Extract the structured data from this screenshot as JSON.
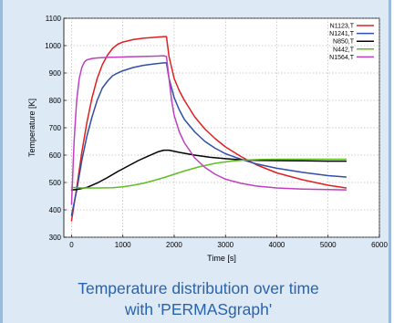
{
  "caption": {
    "line1": "Temperature distribution over time",
    "line2": "with 'PERMASgraph'"
  },
  "chart_data": {
    "type": "line",
    "title": "",
    "xlabel": "Time [s]",
    "ylabel": "Temperature [K]",
    "xlim": [
      -150,
      6000
    ],
    "ylim": [
      300,
      1100
    ],
    "xticks": [
      0,
      1000,
      2000,
      3000,
      4000,
      5000,
      6000
    ],
    "yticks": [
      300,
      400,
      500,
      600,
      700,
      800,
      900,
      1000,
      1100
    ],
    "grid": true,
    "legend_position": "top-right",
    "series": [
      {
        "name": "N1123,T",
        "color": "#e02020",
        "x": [
          0,
          100,
          200,
          300,
          400,
          500,
          600,
          700,
          800,
          900,
          1000,
          1200,
          1400,
          1600,
          1800,
          1850,
          1900,
          2000,
          2100,
          2200,
          2400,
          2600,
          2800,
          3000,
          3300,
          3600,
          4000,
          4500,
          5000,
          5350
        ],
        "y": [
          360,
          480,
          610,
          720,
          810,
          880,
          930,
          965,
          990,
          1005,
          1013,
          1022,
          1027,
          1030,
          1033,
          1033,
          960,
          880,
          835,
          800,
          740,
          695,
          660,
          630,
          595,
          565,
          535,
          510,
          490,
          480
        ]
      },
      {
        "name": "N1241,T",
        "color": "#2f4fa8",
        "x": [
          0,
          100,
          200,
          300,
          400,
          500,
          600,
          700,
          800,
          900,
          1000,
          1200,
          1400,
          1600,
          1800,
          1850,
          1900,
          2000,
          2100,
          2200,
          2400,
          2600,
          2800,
          3000,
          3300,
          3600,
          4000,
          4500,
          5000,
          5350
        ],
        "y": [
          380,
          470,
          580,
          670,
          740,
          800,
          845,
          870,
          890,
          900,
          908,
          920,
          928,
          933,
          937,
          937,
          880,
          810,
          765,
          730,
          685,
          650,
          625,
          605,
          585,
          568,
          552,
          537,
          525,
          520
        ]
      },
      {
        "name": "N850,T",
        "color": "#000000",
        "x": [
          0,
          100,
          300,
          500,
          700,
          900,
          1100,
          1300,
          1500,
          1700,
          1800,
          1900,
          2100,
          2400,
          2700,
          3000,
          3300,
          3600,
          4000,
          4500,
          5000,
          5350
        ],
        "y": [
          473,
          474,
          482,
          498,
          518,
          540,
          560,
          580,
          597,
          613,
          618,
          618,
          610,
          600,
          592,
          587,
          583,
          581,
          580,
          579,
          578,
          578
        ]
      },
      {
        "name": "N442,T",
        "color": "#5fbf1f",
        "x": [
          0,
          200,
          500,
          800,
          1000,
          1200,
          1400,
          1600,
          1800,
          2000,
          2200,
          2500,
          2800,
          3100,
          3400,
          3700,
          4000,
          4500,
          5000,
          5350
        ],
        "y": [
          482,
          480,
          480,
          481,
          484,
          490,
          497,
          507,
          518,
          530,
          542,
          558,
          570,
          578,
          582,
          584,
          585,
          585,
          585,
          585
        ]
      },
      {
        "name": "N1564,T",
        "color": "#c040c0",
        "x": [
          0,
          50,
          100,
          150,
          200,
          250,
          300,
          400,
          500,
          700,
          900,
          1100,
          1300,
          1500,
          1700,
          1800,
          1850,
          1900,
          1950,
          2000,
          2100,
          2200,
          2400,
          2600,
          2800,
          3000,
          3300,
          3600,
          4000,
          4500,
          5000,
          5350
        ],
        "y": [
          420,
          650,
          800,
          880,
          920,
          940,
          948,
          953,
          955,
          957,
          958,
          959,
          960,
          961,
          962,
          963,
          960,
          880,
          800,
          745,
          685,
          645,
          590,
          555,
          530,
          512,
          497,
          487,
          480,
          476,
          474,
          473
        ]
      }
    ]
  }
}
